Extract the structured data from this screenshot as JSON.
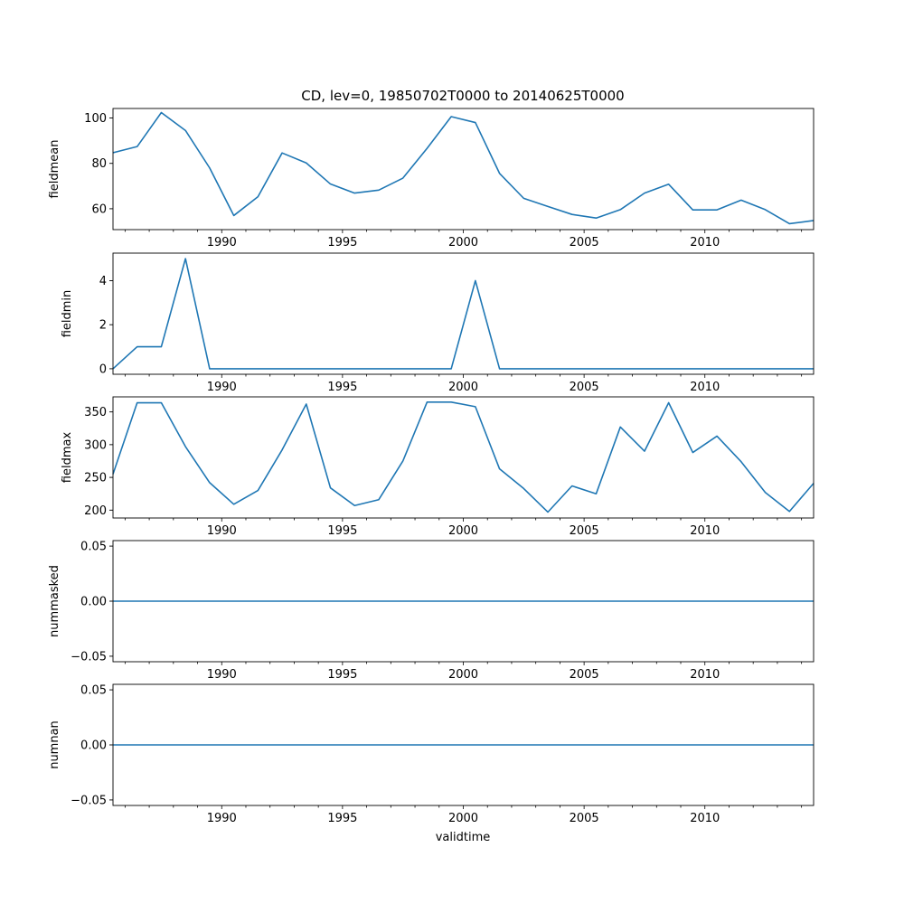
{
  "chart_data": {
    "type": "line",
    "title": "CD, lev=0, 19850702T0000 to 20140625T0000",
    "xlabel": "validtime",
    "xlim": [
      1985.5,
      2014.5
    ],
    "x_ticks": [
      1990,
      1995,
      2000,
      2005,
      2010
    ],
    "x": [
      1985.5,
      1986.5,
      1987.5,
      1988.5,
      1989.5,
      1990.5,
      1991.5,
      1992.5,
      1993.5,
      1994.5,
      1995.5,
      1996.5,
      1997.5,
      1998.5,
      1999.5,
      2000.5,
      2001.5,
      2002.5,
      2003.5,
      2004.5,
      2005.5,
      2006.5,
      2007.5,
      2008.5,
      2009.5,
      2010.5,
      2011.5,
      2012.5,
      2013.5,
      2014.5
    ],
    "color": "#1f77b4",
    "panels": [
      {
        "name": "fieldmean",
        "ylabel": "fieldmean",
        "ylim": [
          50.8,
          104.2
        ],
        "y_ticks": [
          60,
          80,
          100
        ],
        "y_tick_labels": [
          "60",
          "80",
          "100"
        ],
        "values": [
          84.7,
          87.4,
          102.4,
          94.5,
          78.0,
          57.0,
          65.3,
          84.6,
          80.2,
          70.9,
          66.9,
          68.2,
          73.5,
          86.6,
          100.6,
          98.0,
          75.6,
          64.6,
          61.0,
          57.5,
          55.9,
          59.6,
          66.9,
          70.8,
          59.5,
          59.5,
          63.8,
          59.6,
          53.4,
          54.8
        ]
      },
      {
        "name": "fieldmin",
        "ylabel": "fieldmin",
        "ylim": [
          -0.25,
          5.25
        ],
        "y_ticks": [
          0,
          2,
          4
        ],
        "y_tick_labels": [
          "0",
          "2",
          "4"
        ],
        "values": [
          0,
          1,
          1,
          5,
          0,
          0,
          0,
          0,
          0,
          0,
          0,
          0,
          0,
          0,
          0,
          4,
          0,
          0,
          0,
          0,
          0,
          0,
          0,
          0,
          0,
          0,
          0,
          0,
          0,
          0
        ]
      },
      {
        "name": "fieldmax",
        "ylabel": "fieldmax",
        "ylim": [
          188,
          373
        ],
        "y_ticks": [
          200,
          250,
          300,
          350
        ],
        "y_tick_labels": [
          "200",
          "250",
          "300",
          "350"
        ],
        "values": [
          255,
          364,
          364,
          297,
          242,
          209,
          230,
          292,
          362,
          234,
          207,
          216,
          275,
          365,
          365,
          358,
          263,
          233,
          197,
          237,
          225,
          327,
          290,
          364,
          288,
          313,
          274,
          227,
          198,
          241
        ]
      },
      {
        "name": "nummasked",
        "ylabel": "nummasked",
        "ylim": [
          -0.055,
          0.055
        ],
        "y_ticks": [
          -0.05,
          0,
          0.05
        ],
        "y_tick_labels": [
          "−0.05",
          "0.00",
          "0.05"
        ],
        "values": [
          0,
          0,
          0,
          0,
          0,
          0,
          0,
          0,
          0,
          0,
          0,
          0,
          0,
          0,
          0,
          0,
          0,
          0,
          0,
          0,
          0,
          0,
          0,
          0,
          0,
          0,
          0,
          0,
          0,
          0
        ]
      },
      {
        "name": "numnan",
        "ylabel": "numnan",
        "ylim": [
          -0.055,
          0.055
        ],
        "y_ticks": [
          -0.05,
          0,
          0.05
        ],
        "y_tick_labels": [
          "−0.05",
          "0.00",
          "0.05"
        ],
        "values": [
          0,
          0,
          0,
          0,
          0,
          0,
          0,
          0,
          0,
          0,
          0,
          0,
          0,
          0,
          0,
          0,
          0,
          0,
          0,
          0,
          0,
          0,
          0,
          0,
          0,
          0,
          0,
          0,
          0,
          0
        ]
      }
    ]
  }
}
